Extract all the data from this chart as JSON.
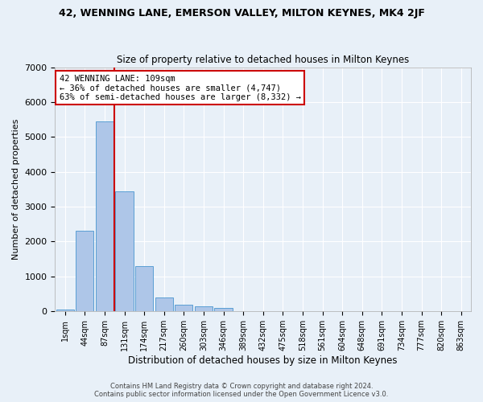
{
  "title": "42, WENNING LANE, EMERSON VALLEY, MILTON KEYNES, MK4 2JF",
  "subtitle": "Size of property relative to detached houses in Milton Keynes",
  "xlabel": "Distribution of detached houses by size in Milton Keynes",
  "ylabel": "Number of detached properties",
  "footer_line1": "Contains HM Land Registry data © Crown copyright and database right 2024.",
  "footer_line2": "Contains public sector information licensed under the Open Government Licence v3.0.",
  "bar_labels": [
    "1sqm",
    "44sqm",
    "87sqm",
    "131sqm",
    "174sqm",
    "217sqm",
    "260sqm",
    "303sqm",
    "346sqm",
    "389sqm",
    "432sqm",
    "475sqm",
    "518sqm",
    "561sqm",
    "604sqm",
    "648sqm",
    "691sqm",
    "734sqm",
    "777sqm",
    "820sqm",
    "863sqm"
  ],
  "bar_values": [
    50,
    2300,
    5450,
    3450,
    1300,
    400,
    200,
    150,
    100,
    0,
    0,
    0,
    0,
    0,
    0,
    0,
    0,
    0,
    0,
    0,
    0
  ],
  "bar_color": "#aec6e8",
  "bar_edge_color": "#5a9fd4",
  "background_color": "#e8f0f8",
  "grid_color": "#ffffff",
  "vline_color": "#cc0000",
  "annotation_text": "42 WENNING LANE: 109sqm\n← 36% of detached houses are smaller (4,747)\n63% of semi-detached houses are larger (8,332) →",
  "annotation_box_color": "#ffffff",
  "annotation_box_edge_color": "#cc0000",
  "ylim": [
    0,
    7000
  ],
  "yticks": [
    0,
    1000,
    2000,
    3000,
    4000,
    5000,
    6000,
    7000
  ]
}
